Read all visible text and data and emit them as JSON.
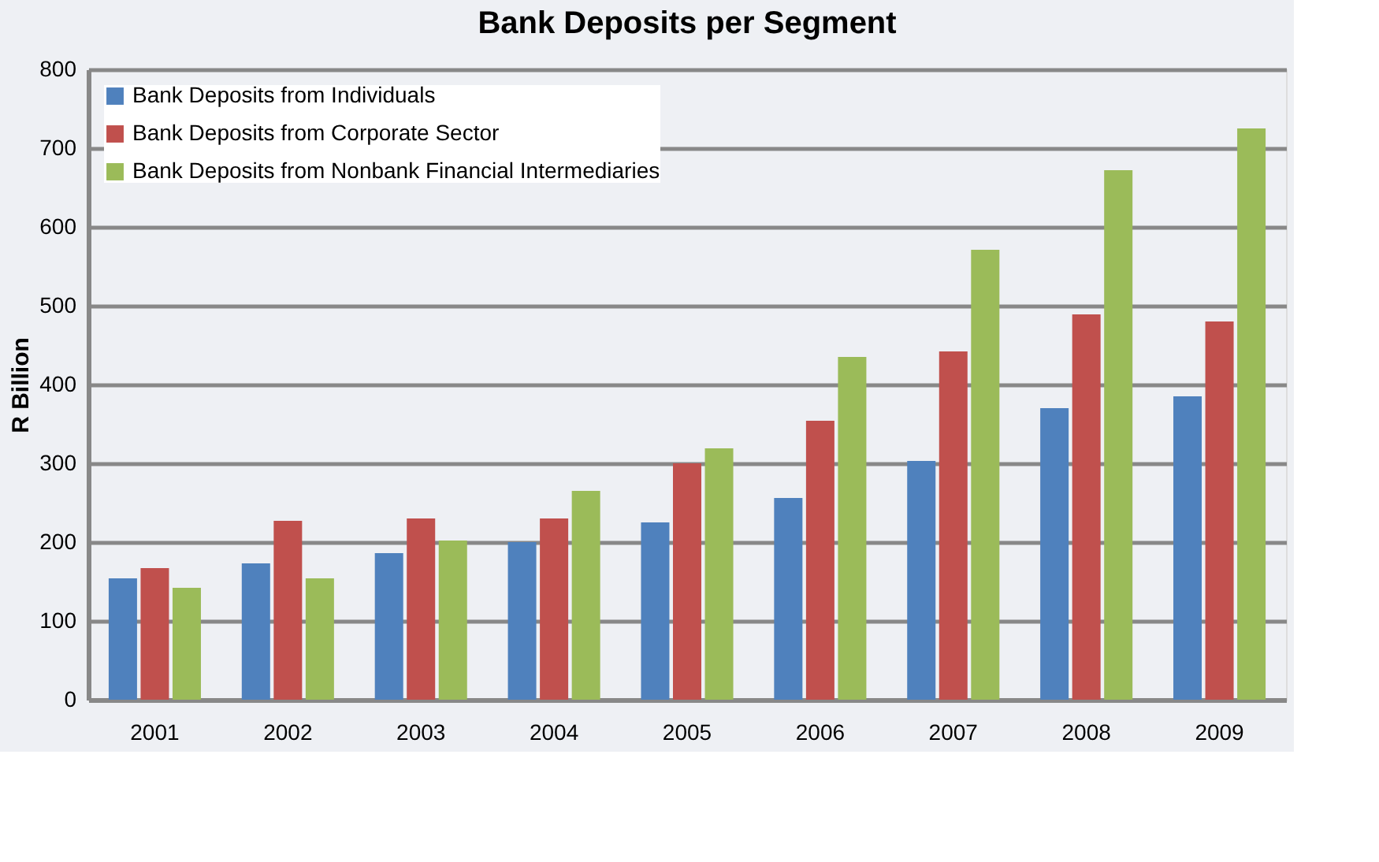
{
  "chart_data": {
    "type": "bar",
    "title": "Bank Deposits per Segment",
    "ylabel": "R Billion",
    "categories": [
      "2001",
      "2002",
      "2003",
      "2004",
      "2005",
      "2006",
      "2007",
      "2008",
      "2009"
    ],
    "series": [
      {
        "name": "Bank Deposits from Individuals",
        "color": "#4f81bd",
        "values": [
          154,
          173,
          186,
          200,
          225,
          256,
          303,
          370,
          385
        ]
      },
      {
        "name": "Bank Deposits from Corporate Sector",
        "color": "#c0504d",
        "values": [
          167,
          227,
          230,
          230,
          300,
          354,
          442,
          489,
          480
        ]
      },
      {
        "name": "Bank Deposits from Nonbank Financial Intermediaries",
        "color": "#9bbb59",
        "values": [
          142,
          154,
          202,
          265,
          319,
          435,
          571,
          672,
          725
        ]
      }
    ],
    "ylim": [
      0,
      800
    ],
    "yticks": [
      0,
      100,
      200,
      300,
      400,
      500,
      600,
      700,
      800
    ],
    "grid": "y",
    "legend": "top left"
  }
}
